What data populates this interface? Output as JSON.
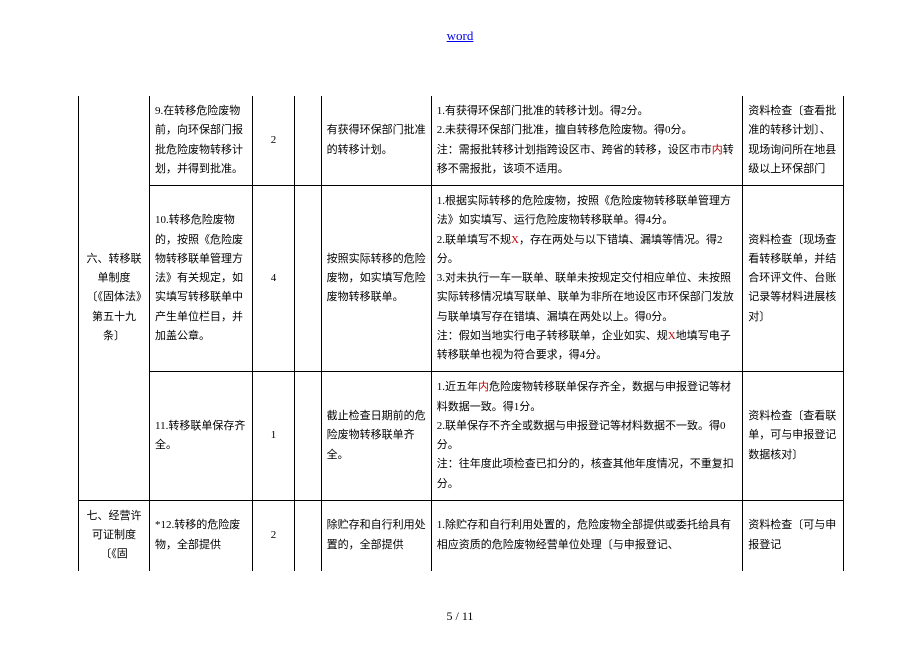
{
  "header": {
    "link_text": "word"
  },
  "footer": {
    "page": "5 / 11"
  },
  "colors": {
    "red": "#c00000",
    "border": "#000000",
    "link": "#0000ee"
  },
  "rows": [
    {
      "cat": "六、转移联单制度〔《固体法》第五十九条〕",
      "cat_rowspan": 3,
      "item": "9.在转移危险废物前，向环保部门报批危险废物转移计划，并得到批准。",
      "points": "2",
      "blank": "",
      "standard": "有获得环保部门批准的转移计划。",
      "note": "1.有获得环保部门批准的转移计划。得2分。\n2.未获得环保部门批准，擅自转移危险废物。得0分。\n注：需报批转移计划指跨设区市、跨省的转移，设区市市|内|转移不需报批，该项不适用。",
      "check": "资料检查〔查看批准的转移计划〕、现场询问所在地县级以上环保部门"
    },
    {
      "item": "10.转移危险废物的，按照《危险废物转移联单管理方法》有关规定，如实填写转移联单中产生单位栏目，并加盖公章。",
      "points": "4",
      "blank": "",
      "standard": "按照实际转移的危险废物，如实填写危险废物转移联单。",
      "note": "1.根据实际转移的危险废物，按照《危险废物转移联单管理方法》如实填写、运行危险废物转移联单。得4分。\n2.联单填写不规|X|，存在两处与以下错填、漏填等情况。得2分。\n3.对未执行一车一联单、联单未按规定交付相应单位、未按照实际转移情况填写联单、联单为非所在地设区市环保部门发放与联单填写存在错填、漏填在两处以上。得0分。\n注：假如当地实行电子转移联单，企业如实、规|X|地填写电子转移联单也视为符合要求，得4分。",
      "check": "资料检查〔现场查看转移联单，并结合环评文件、台账记录等材料进展核对〕"
    },
    {
      "item": "11.转移联单保存齐全。",
      "points": "1",
      "blank": "",
      "standard": "截止检查日期前的危险废物转移联单齐全。",
      "note": "1.近五年|内|危险废物转移联单保存齐全，数据与申报登记等材料数据一致。得1分。\n2.联单保存不齐全或数据与申报登记等材料数据不一致。得0分。\n注：往年度此项检查已扣分的，核查其他年度情况，不重复扣分。",
      "check": "资料检查〔查看联单，可与申报登记数据核对〕"
    },
    {
      "cat": "七、经营许可证制度〔《固",
      "open_bottom": true,
      "item": "*12.转移的危险废物，全部提供",
      "points": "2",
      "blank": "",
      "standard": "除贮存和自行利用处置的，全部提供",
      "note": "1.除贮存和自行利用处置的，危险废物全部提供或委托给具有相应资质的危险废物经营单位处理〔与申报登记、",
      "check": "资料检查〔可与申报登记"
    }
  ]
}
